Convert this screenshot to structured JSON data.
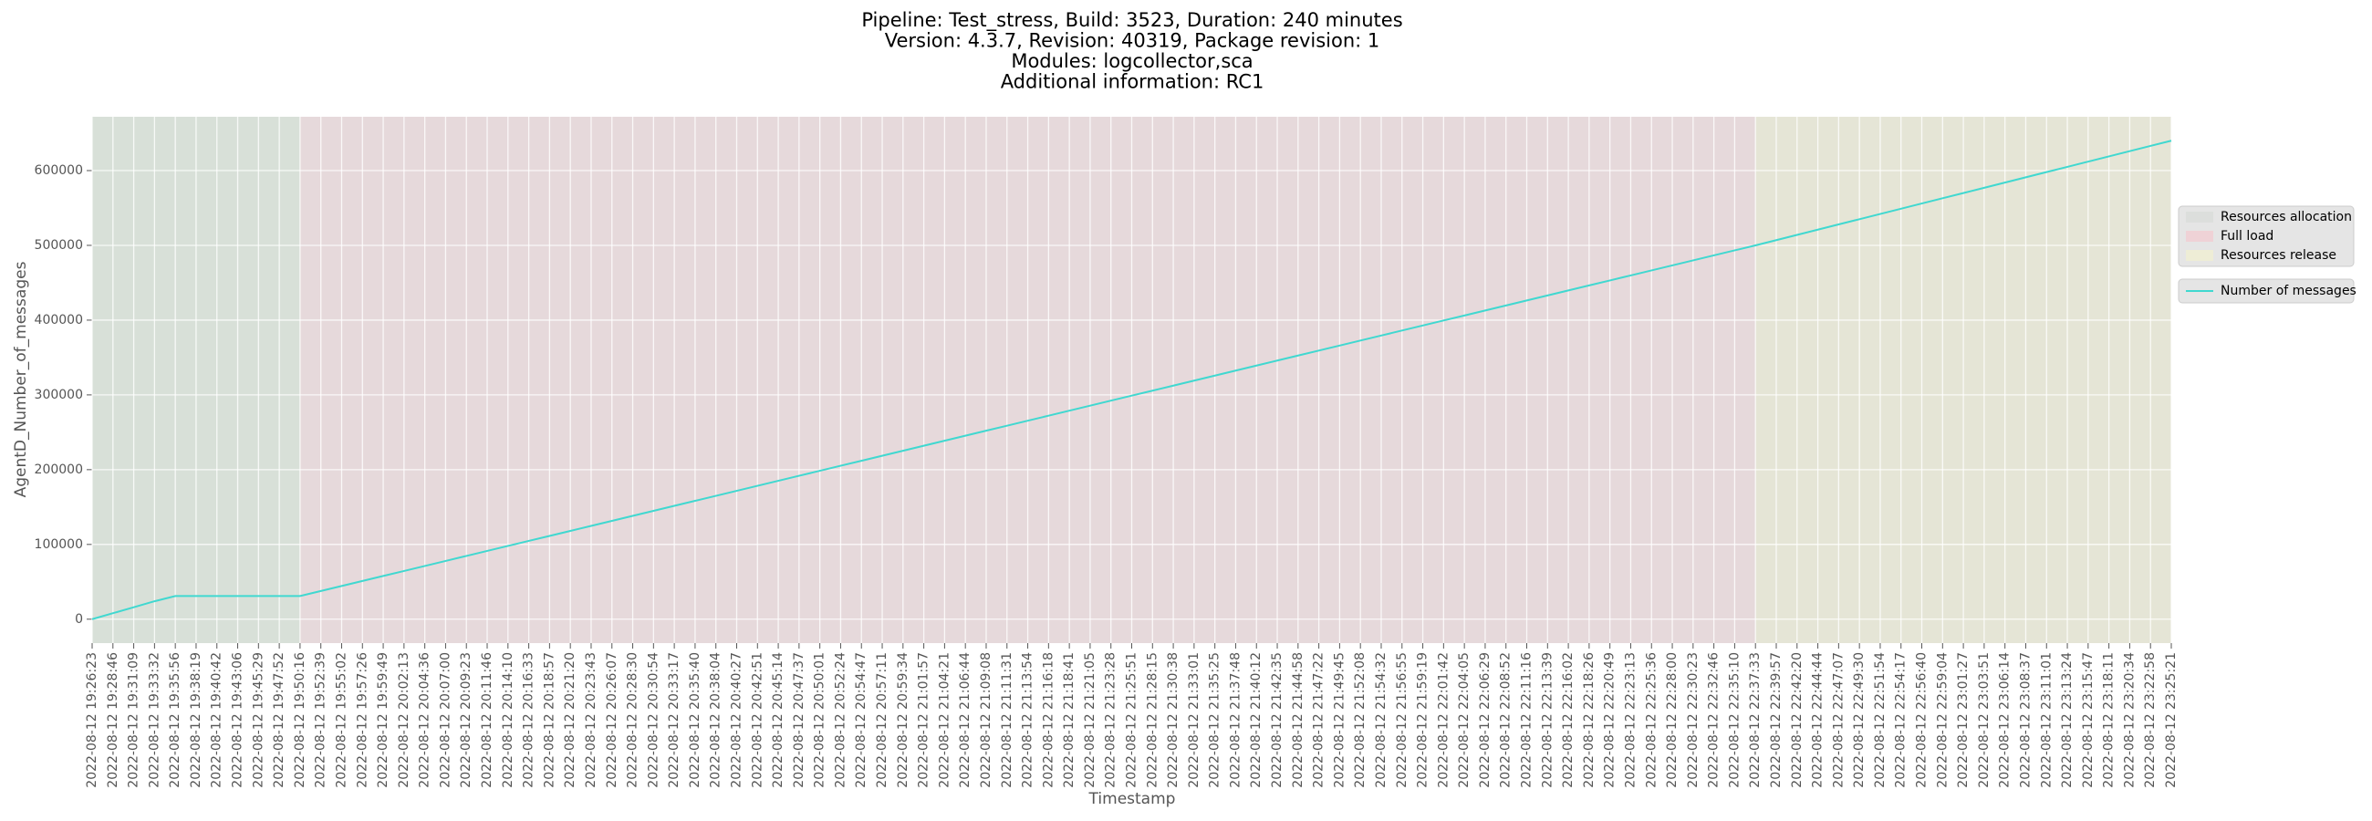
{
  "chart_data": {
    "type": "line",
    "title": [
      "Pipeline: Test_stress, Build: 3523, Duration: 240 minutes",
      "Version: 4.3.7, Revision: 40319, Package revision: 1",
      "Modules: logcollector,sca",
      "Additional information: RC1"
    ],
    "x_label": "Timestamp",
    "y_label": "AgentD_Number_of_messages",
    "categories": [
      "2022-08-12 19:26:23",
      "2022-08-12 19:28:46",
      "2022-08-12 19:31:09",
      "2022-08-12 19:33:32",
      "2022-08-12 19:35:56",
      "2022-08-12 19:38:19",
      "2022-08-12 19:40:42",
      "2022-08-12 19:43:06",
      "2022-08-12 19:45:29",
      "2022-08-12 19:47:52",
      "2022-08-12 19:50:16",
      "2022-08-12 19:52:39",
      "2022-08-12 19:55:02",
      "2022-08-12 19:57:26",
      "2022-08-12 19:59:49",
      "2022-08-12 20:02:13",
      "2022-08-12 20:04:36",
      "2022-08-12 20:07:00",
      "2022-08-12 20:09:23",
      "2022-08-12 20:11:46",
      "2022-08-12 20:14:10",
      "2022-08-12 20:16:33",
      "2022-08-12 20:18:57",
      "2022-08-12 20:21:20",
      "2022-08-12 20:23:43",
      "2022-08-12 20:26:07",
      "2022-08-12 20:28:30",
      "2022-08-12 20:30:54",
      "2022-08-12 20:33:17",
      "2022-08-12 20:35:40",
      "2022-08-12 20:38:04",
      "2022-08-12 20:40:27",
      "2022-08-12 20:42:51",
      "2022-08-12 20:45:14",
      "2022-08-12 20:47:37",
      "2022-08-12 20:50:01",
      "2022-08-12 20:52:24",
      "2022-08-12 20:54:47",
      "2022-08-12 20:57:11",
      "2022-08-12 20:59:34",
      "2022-08-12 21:01:57",
      "2022-08-12 21:04:21",
      "2022-08-12 21:06:44",
      "2022-08-12 21:09:08",
      "2022-08-12 21:11:31",
      "2022-08-12 21:13:54",
      "2022-08-12 21:16:18",
      "2022-08-12 21:18:41",
      "2022-08-12 21:21:05",
      "2022-08-12 21:23:28",
      "2022-08-12 21:25:51",
      "2022-08-12 21:28:15",
      "2022-08-12 21:30:38",
      "2022-08-12 21:33:01",
      "2022-08-12 21:35:25",
      "2022-08-12 21:37:48",
      "2022-08-12 21:40:12",
      "2022-08-12 21:42:35",
      "2022-08-12 21:44:58",
      "2022-08-12 21:47:22",
      "2022-08-12 21:49:45",
      "2022-08-12 21:52:08",
      "2022-08-12 21:54:32",
      "2022-08-12 21:56:55",
      "2022-08-12 21:59:19",
      "2022-08-12 22:01:42",
      "2022-08-12 22:04:05",
      "2022-08-12 22:06:29",
      "2022-08-12 22:08:52",
      "2022-08-12 22:11:16",
      "2022-08-12 22:13:39",
      "2022-08-12 22:16:02",
      "2022-08-12 22:18:26",
      "2022-08-12 22:20:49",
      "2022-08-12 22:23:13",
      "2022-08-12 22:25:36",
      "2022-08-12 22:28:00",
      "2022-08-12 22:30:23",
      "2022-08-12 22:32:46",
      "2022-08-12 22:35:10",
      "2022-08-12 22:37:33",
      "2022-08-12 22:39:57",
      "2022-08-12 22:42:20",
      "2022-08-12 22:44:44",
      "2022-08-12 22:47:07",
      "2022-08-12 22:49:30",
      "2022-08-12 22:51:54",
      "2022-08-12 22:54:17",
      "2022-08-12 22:56:40",
      "2022-08-12 22:59:04",
      "2022-08-12 23:01:27",
      "2022-08-12 23:03:51",
      "2022-08-12 23:06:14",
      "2022-08-12 23:08:37",
      "2022-08-12 23:11:01",
      "2022-08-12 23:13:24",
      "2022-08-12 23:15:47",
      "2022-08-12 23:18:11",
      "2022-08-12 23:20:34",
      "2022-08-12 23:22:58",
      "2022-08-12 23:25:21"
    ],
    "series": [
      {
        "name": "Number of messages",
        "color": "#40d8d0",
        "values": [
          0,
          8000,
          16000,
          24000,
          31000,
          31000,
          31000,
          31000,
          31000,
          31000,
          31000,
          37700,
          44400,
          51100,
          57800,
          64500,
          71200,
          77900,
          84600,
          91300,
          98000,
          104700,
          111400,
          118100,
          124800,
          131500,
          138200,
          144900,
          151600,
          158300,
          165000,
          171700,
          178400,
          185100,
          191800,
          198500,
          205200,
          211900,
          218600,
          225300,
          232000,
          238700,
          245400,
          252100,
          258800,
          265500,
          272200,
          278900,
          285600,
          292300,
          299000,
          305700,
          312400,
          319100,
          325800,
          332500,
          339200,
          345900,
          352600,
          359300,
          366000,
          372700,
          379400,
          386100,
          392800,
          399500,
          406200,
          412900,
          419600,
          426300,
          433000,
          439700,
          446400,
          453100,
          459800,
          466500,
          473200,
          479900,
          486600,
          493300,
          500000,
          507000,
          514000,
          521000,
          528000,
          535000,
          542000,
          549000,
          556000,
          563000,
          570000,
          577000,
          584000,
          591000,
          598000,
          605000,
          612000,
          619000,
          626000,
          633000,
          640000
        ]
      }
    ],
    "phases": [
      {
        "name": "Resources allocation",
        "color": "#d8e0d8",
        "legend_color": "#dcdedc",
        "start": "2022-08-12 19:26:23",
        "end": "2022-08-12 19:50:16"
      },
      {
        "name": "Full load",
        "color": "#e6d9db",
        "legend_color": "#efd2d6",
        "start": "2022-08-12 19:50:16",
        "end": "2022-08-12 22:37:33"
      },
      {
        "name": "Resources release",
        "color": "#e5e5d6",
        "legend_color": "#eeedd6",
        "start": "2022-08-12 22:37:33",
        "end": "2022-08-12 23:25:21"
      }
    ],
    "ylim": [
      -32000,
      672000
    ],
    "yticks": [
      0,
      100000,
      200000,
      300000,
      400000,
      500000,
      600000
    ],
    "grid": true,
    "background": "#e5e5e5",
    "legend_position": "right"
  }
}
